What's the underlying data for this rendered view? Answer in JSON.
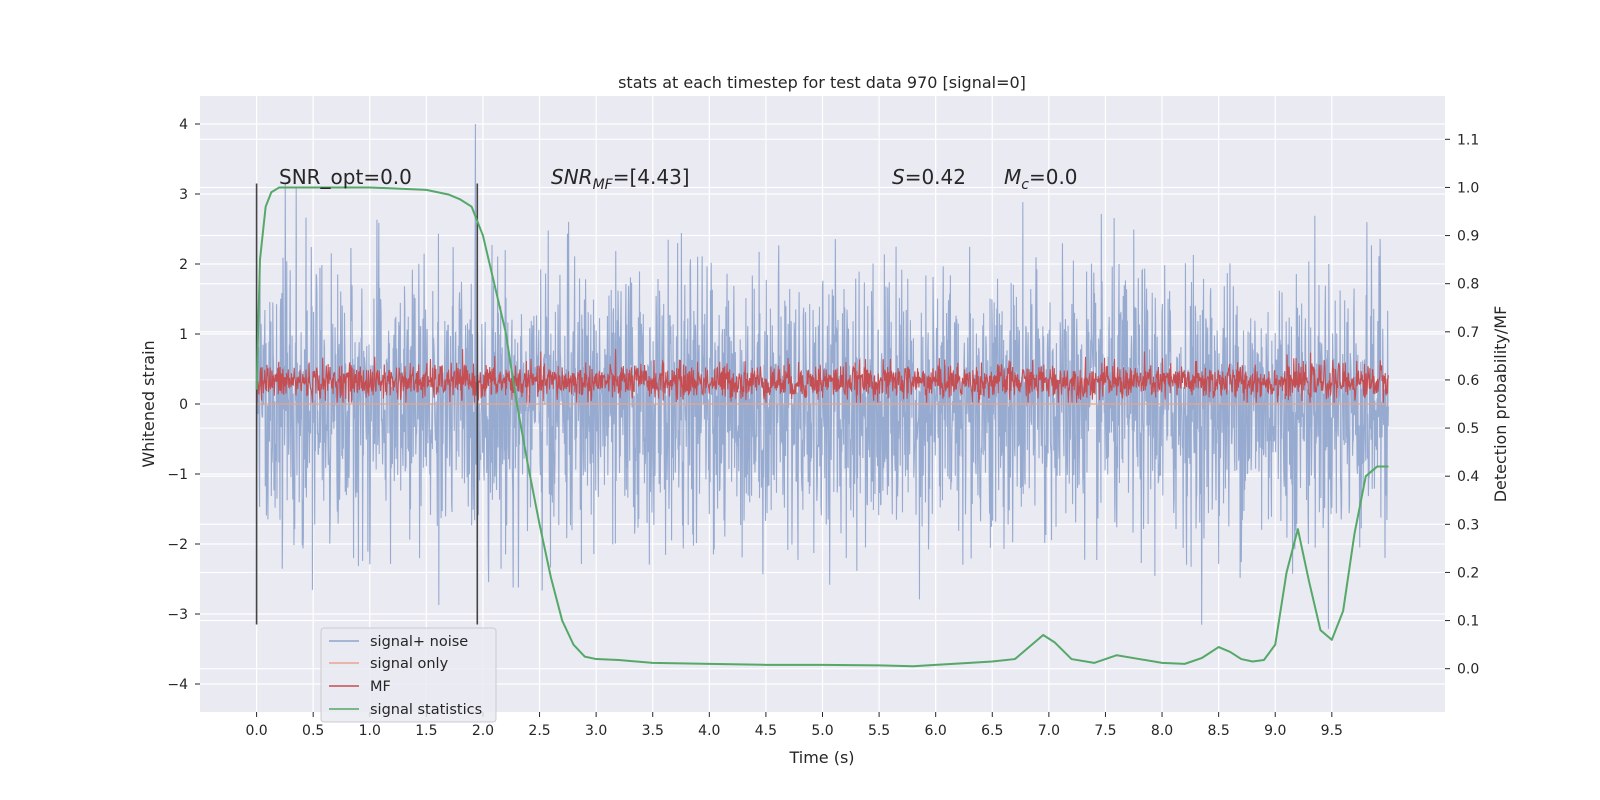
{
  "chart_data": {
    "type": "line",
    "title": "stats at each timestep for test data 970 [signal=0]",
    "xlabel": "Time (s)",
    "ylabel": "Whitened strain",
    "y2label": "Detection probability/MF",
    "xlim": [
      -0.5,
      10.5
    ],
    "ylim": [
      -4.4,
      4.4
    ],
    "y2lim": [
      -0.09,
      1.19
    ],
    "x_ticks": [
      "0.0",
      "0.5",
      "1.0",
      "1.5",
      "2.0",
      "2.5",
      "3.0",
      "3.5",
      "4.0",
      "4.5",
      "5.0",
      "5.5",
      "6.0",
      "6.5",
      "7.0",
      "7.5",
      "8.0",
      "8.5",
      "9.0",
      "9.5"
    ],
    "y_ticks": [
      "−4",
      "−3",
      "−2",
      "−1",
      "0",
      "1",
      "2",
      "3",
      "4"
    ],
    "y2_ticks": [
      "0.0",
      "0.1",
      "0.2",
      "0.3",
      "0.4",
      "0.5",
      "0.6",
      "0.7",
      "0.8",
      "0.9",
      "1.0",
      "1.1"
    ],
    "grid": true,
    "legend_position": "lower-left",
    "annotations": {
      "snr_opt": "SNR_opt=0.0",
      "snr_mf": "SNR",
      "snr_mf_sub": "MF",
      "snr_mf_val": "=[4.43]",
      "s_sym": "S",
      "s_val": "=0.42",
      "mc_sym": "M",
      "mc_sub": "c",
      "mc_val": "=0.0"
    },
    "vlines_x": [
      0.0,
      1.95
    ],
    "series": [
      {
        "name": "signal+ noise",
        "color": "#8ea3cc",
        "axis": "left",
        "x_range": [
          0,
          10
        ],
        "y_range_approx": [
          -4.0,
          4.0
        ]
      },
      {
        "name": "signal only",
        "color": "#e8a58c",
        "axis": "left",
        "x_range": [
          0,
          10
        ],
        "y_const": 0.0
      },
      {
        "name": "MF",
        "color": "#c44e52",
        "axis": "left",
        "x_range": [
          0,
          10
        ],
        "y_range_approx": [
          0.0,
          1.0
        ]
      },
      {
        "name": "signal statistics",
        "color": "#55a868",
        "axis": "right",
        "x": [
          0.0,
          0.03,
          0.08,
          0.13,
          0.2,
          0.3,
          0.5,
          1.0,
          1.5,
          1.7,
          1.8,
          1.9,
          2.0,
          2.1,
          2.2,
          2.3,
          2.4,
          2.5,
          2.6,
          2.7,
          2.8,
          2.9,
          3.0,
          3.2,
          3.5,
          4.0,
          4.5,
          5.0,
          5.5,
          5.8,
          6.0,
          6.3,
          6.5,
          6.7,
          6.85,
          6.95,
          7.05,
          7.2,
          7.4,
          7.6,
          7.8,
          8.0,
          8.2,
          8.35,
          8.5,
          8.6,
          8.7,
          8.8,
          8.9,
          9.0,
          9.1,
          9.2,
          9.3,
          9.4,
          9.5,
          9.6,
          9.7,
          9.8,
          9.9,
          10.0
        ],
        "values": [
          0.58,
          0.85,
          0.96,
          0.99,
          1.0,
          1.0,
          1.0,
          1.0,
          0.995,
          0.985,
          0.975,
          0.96,
          0.9,
          0.8,
          0.7,
          0.55,
          0.42,
          0.3,
          0.19,
          0.1,
          0.05,
          0.025,
          0.02,
          0.018,
          0.012,
          0.01,
          0.008,
          0.008,
          0.007,
          0.005,
          0.008,
          0.012,
          0.015,
          0.02,
          0.05,
          0.07,
          0.055,
          0.02,
          0.012,
          0.028,
          0.02,
          0.012,
          0.01,
          0.022,
          0.045,
          0.035,
          0.02,
          0.015,
          0.018,
          0.05,
          0.2,
          0.29,
          0.18,
          0.08,
          0.06,
          0.12,
          0.28,
          0.4,
          0.42,
          0.42
        ]
      }
    ]
  }
}
